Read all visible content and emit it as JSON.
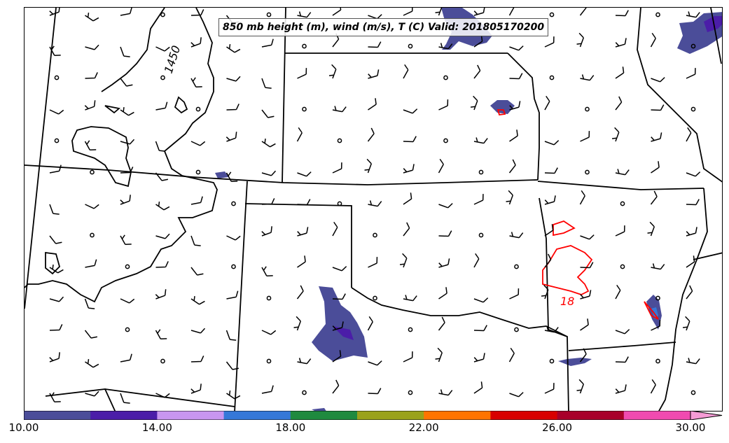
{
  "title": "850 mb height (m), wind (m/s), T (C) Valid: 201805170200",
  "contour_labels": {
    "height": "1450",
    "temperature": "18"
  },
  "colorbar": {
    "min": 10,
    "max": 30,
    "tick_labels": [
      "10.00",
      "14.00",
      "18.00",
      "22.00",
      "26.00",
      "30.00"
    ],
    "tick_values": [
      10,
      14,
      18,
      22,
      26,
      30
    ],
    "colors": [
      "#4b4d99",
      "#4b1da8",
      "#c896f0",
      "#3578d8",
      "#1f8a3f",
      "#9aa21a",
      "#ff7400",
      "#d80000",
      "#a8002a",
      "#f04ab0",
      "#f59bd5"
    ]
  },
  "colors": {
    "state_lines": "#000000",
    "height_contour": "#000000",
    "temperature_contour": "#ff0000"
  }
}
